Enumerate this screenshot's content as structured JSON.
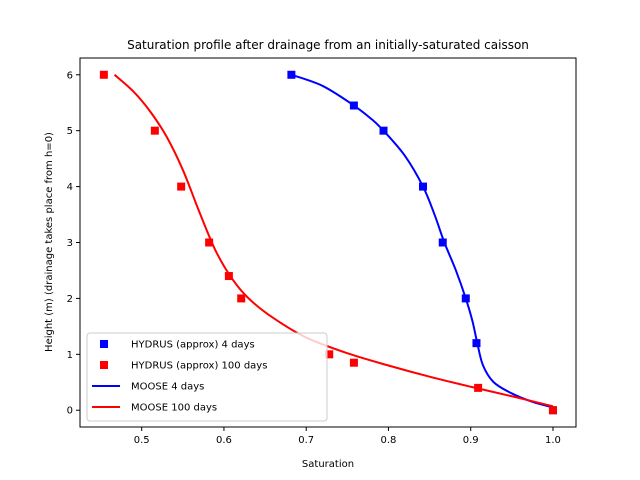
{
  "chart_data": {
    "type": "line",
    "title": "Saturation profile after drainage from an initially-saturated caisson",
    "xlabel": "Saturation",
    "ylabel": "Height (m) (drainage takes place from h=0)",
    "xlim": [
      0.425,
      1.028
    ],
    "ylim": [
      -0.3,
      6.3
    ],
    "xticks": [
      0.5,
      0.6,
      0.7,
      0.8,
      0.9,
      1.0
    ],
    "xtick_labels": [
      "0.5",
      "0.6",
      "0.7",
      "0.8",
      "0.9",
      "1.0"
    ],
    "yticks": [
      0,
      1,
      2,
      3,
      4,
      5,
      6
    ],
    "ytick_labels": [
      "0",
      "1",
      "2",
      "3",
      "4",
      "5",
      "6"
    ],
    "grid": false,
    "legend_position": "lower-left",
    "series": [
      {
        "name": "HYDRUS (approx) 4 days",
        "kind": "markers",
        "marker": "square",
        "color": "#0000ff",
        "points": [
          [
            0.682,
            6.0
          ],
          [
            0.758,
            5.45
          ],
          [
            0.794,
            5.0
          ],
          [
            0.842,
            4.0
          ],
          [
            0.866,
            3.0
          ],
          [
            0.894,
            2.0
          ],
          [
            0.907,
            1.2
          ],
          [
            1.0,
            0.0
          ]
        ]
      },
      {
        "name": "HYDRUS (approx) 100 days",
        "kind": "markers",
        "marker": "square",
        "color": "#ff0000",
        "points": [
          [
            0.454,
            6.0
          ],
          [
            0.516,
            5.0
          ],
          [
            0.548,
            4.0
          ],
          [
            0.582,
            3.0
          ],
          [
            0.606,
            2.4
          ],
          [
            0.621,
            2.0
          ],
          [
            0.728,
            1.0
          ],
          [
            0.758,
            0.85
          ],
          [
            0.909,
            0.4
          ],
          [
            1.0,
            0.0
          ]
        ]
      },
      {
        "name": "MOOSE 4 days",
        "kind": "line",
        "color": "#0000ff",
        "points": [
          [
            0.682,
            6.0
          ],
          [
            0.72,
            5.8
          ],
          [
            0.758,
            5.45
          ],
          [
            0.78,
            5.2
          ],
          [
            0.794,
            5.0
          ],
          [
            0.82,
            4.55
          ],
          [
            0.842,
            4.0
          ],
          [
            0.856,
            3.5
          ],
          [
            0.868,
            3.0
          ],
          [
            0.882,
            2.5
          ],
          [
            0.894,
            2.0
          ],
          [
            0.902,
            1.6
          ],
          [
            0.908,
            1.2
          ],
          [
            0.915,
            0.8
          ],
          [
            0.928,
            0.5
          ],
          [
            0.95,
            0.3
          ],
          [
            0.975,
            0.15
          ],
          [
            1.0,
            0.05
          ]
        ]
      },
      {
        "name": "MOOSE 100 days",
        "kind": "line",
        "color": "#ff0000",
        "points": [
          [
            0.467,
            6.0
          ],
          [
            0.49,
            5.7
          ],
          [
            0.51,
            5.35
          ],
          [
            0.53,
            4.9
          ],
          [
            0.55,
            4.3
          ],
          [
            0.57,
            3.55
          ],
          [
            0.59,
            2.85
          ],
          [
            0.61,
            2.35
          ],
          [
            0.63,
            2.0
          ],
          [
            0.66,
            1.65
          ],
          [
            0.7,
            1.3
          ],
          [
            0.75,
            1.02
          ],
          [
            0.8,
            0.8
          ],
          [
            0.85,
            0.6
          ],
          [
            0.9,
            0.42
          ],
          [
            0.95,
            0.25
          ],
          [
            1.0,
            0.07
          ]
        ]
      }
    ]
  }
}
